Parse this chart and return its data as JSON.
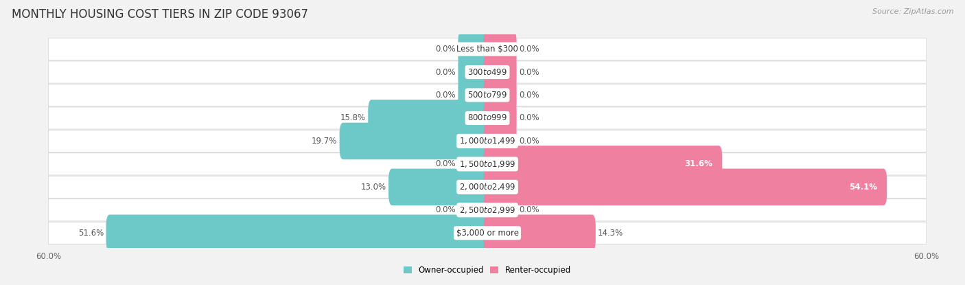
{
  "title": "MONTHLY HOUSING COST TIERS IN ZIP CODE 93067",
  "source": "Source: ZipAtlas.com",
  "categories": [
    "Less than $300",
    "$300 to $499",
    "$500 to $799",
    "$800 to $999",
    "$1,000 to $1,499",
    "$1,500 to $1,999",
    "$2,000 to $2,499",
    "$2,500 to $2,999",
    "$3,000 or more"
  ],
  "owner_values": [
    0.0,
    0.0,
    0.0,
    15.8,
    19.7,
    0.0,
    13.0,
    0.0,
    51.6
  ],
  "renter_values": [
    0.0,
    0.0,
    0.0,
    0.0,
    0.0,
    31.6,
    54.1,
    0.0,
    14.3
  ],
  "owner_color": "#6dc8c8",
  "renter_color": "#f080a0",
  "owner_label": "Owner-occupied",
  "renter_label": "Renter-occupied",
  "xlim": 60.0,
  "min_stub": 3.5,
  "background_color": "#f2f2f2",
  "row_bg_color": "#ffffff",
  "row_border_color": "#d0d0d0",
  "title_fontsize": 12,
  "cat_fontsize": 8.5,
  "val_fontsize": 8.5,
  "axis_fontsize": 8.5,
  "source_fontsize": 8
}
